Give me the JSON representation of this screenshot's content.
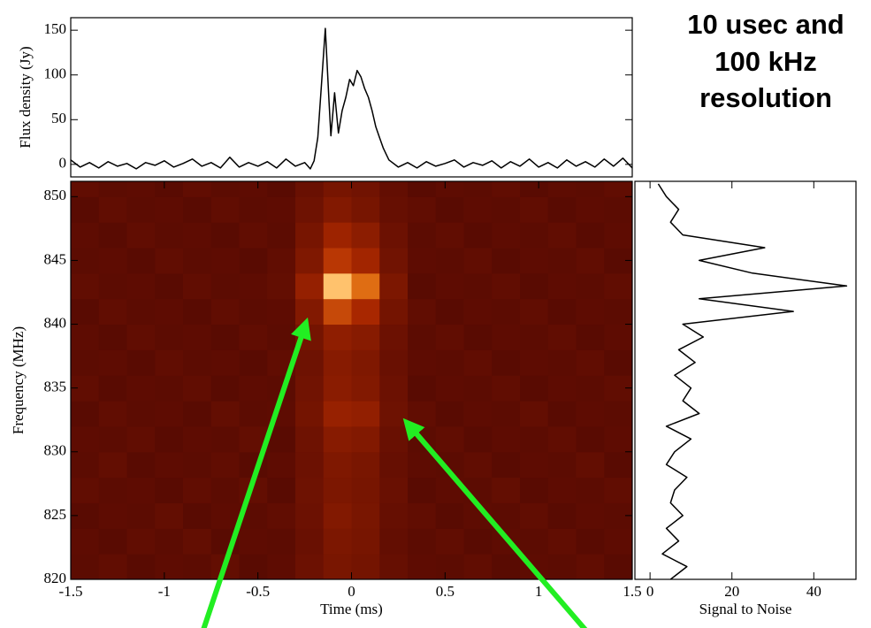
{
  "chart_data": [
    {
      "type": "line",
      "ylabel": "Flux density (Jy)",
      "color": "#000000",
      "xlim": [
        -1.5,
        1.5
      ],
      "ylim": [
        -14,
        164
      ],
      "yticks": [
        0,
        50,
        100,
        150
      ],
      "x": [
        -1.5,
        -1.45,
        -1.4,
        -1.35,
        -1.3,
        -1.25,
        -1.2,
        -1.15,
        -1.1,
        -1.05,
        -1,
        -0.95,
        -0.9,
        -0.85,
        -0.8,
        -0.75,
        -0.7,
        -0.65,
        -0.6,
        -0.55,
        -0.5,
        -0.45,
        -0.4,
        -0.35,
        -0.3,
        -0.25,
        -0.22,
        -0.2,
        -0.18,
        -0.16,
        -0.14,
        -0.12,
        -0.11,
        -0.09,
        -0.07,
        -0.05,
        -0.03,
        -0.01,
        0.01,
        0.03,
        0.05,
        0.07,
        0.09,
        0.11,
        0.13,
        0.15,
        0.17,
        0.2,
        0.25,
        0.3,
        0.35,
        0.4,
        0.45,
        0.5,
        0.55,
        0.6,
        0.65,
        0.7,
        0.75,
        0.8,
        0.85,
        0.9,
        0.95,
        1,
        1.05,
        1.1,
        1.15,
        1.2,
        1.25,
        1.3,
        1.35,
        1.4,
        1.45,
        1.5
      ],
      "values": [
        5,
        -3,
        2,
        -4,
        3,
        -2,
        1,
        -5,
        2,
        -1,
        4,
        -3,
        1,
        6,
        -2,
        2,
        -4,
        8,
        -3,
        2,
        -2,
        3,
        -4,
        6,
        -2,
        2,
        -5,
        4,
        30,
        90,
        152,
        70,
        32,
        80,
        35,
        60,
        75,
        95,
        88,
        105,
        98,
        85,
        75,
        60,
        42,
        30,
        18,
        5,
        -3,
        2,
        -4,
        3,
        -2,
        1,
        5,
        -3,
        2,
        -1,
        4,
        -4,
        3,
        -2,
        6,
        -3,
        2,
        -4,
        5,
        -2,
        3,
        -3,
        6,
        -2,
        7,
        -4
      ]
    },
    {
      "type": "heatmap",
      "xlabel": "Time (ms)",
      "ylabel": "Frequency (MHz)",
      "colormap": "hot",
      "xlim": [
        -1.5,
        1.5
      ],
      "ylim": [
        820,
        851.2
      ],
      "xticks": [
        -1.5,
        -1,
        -0.5,
        0,
        0.5,
        1,
        1.5
      ],
      "yticks": [
        820,
        825,
        830,
        835,
        840,
        845,
        850
      ],
      "x_bins": [
        -1.5,
        -1.35,
        -1.2,
        -1.05,
        -0.9,
        -0.75,
        -0.6,
        -0.45,
        -0.3,
        -0.15,
        0,
        0.15,
        0.3,
        0.45,
        0.6,
        0.75,
        0.9,
        1.05,
        1.2,
        1.35,
        1.5
      ],
      "y_bins": [
        820,
        822,
        824,
        826,
        828,
        830,
        832,
        834,
        836,
        838,
        840,
        842,
        844,
        846,
        848,
        850,
        851.2
      ],
      "values": [
        [
          0.24,
          0.26,
          0.23,
          0.25,
          0.24,
          0.27,
          0.23,
          0.25,
          0.3,
          0.35,
          0.33,
          0.28,
          0.25,
          0.24,
          0.26,
          0.23,
          0.25,
          0.24,
          0.26,
          0.23
        ],
        [
          0.25,
          0.23,
          0.26,
          0.24,
          0.27,
          0.23,
          0.25,
          0.24,
          0.29,
          0.36,
          0.34,
          0.27,
          0.24,
          0.26,
          0.23,
          0.25,
          0.24,
          0.26,
          0.23,
          0.25
        ],
        [
          0.23,
          0.25,
          0.24,
          0.27,
          0.23,
          0.25,
          0.24,
          0.26,
          0.3,
          0.38,
          0.35,
          0.28,
          0.26,
          0.23,
          0.25,
          0.24,
          0.26,
          0.23,
          0.25,
          0.24
        ],
        [
          0.26,
          0.24,
          0.25,
          0.23,
          0.26,
          0.24,
          0.27,
          0.23,
          0.31,
          0.36,
          0.34,
          0.29,
          0.23,
          0.25,
          0.24,
          0.27,
          0.23,
          0.25,
          0.24,
          0.26
        ],
        [
          0.24,
          0.27,
          0.23,
          0.25,
          0.24,
          0.26,
          0.23,
          0.25,
          0.3,
          0.37,
          0.35,
          0.28,
          0.25,
          0.24,
          0.26,
          0.23,
          0.25,
          0.24,
          0.27,
          0.23
        ],
        [
          0.25,
          0.24,
          0.26,
          0.23,
          0.25,
          0.24,
          0.27,
          0.23,
          0.31,
          0.4,
          0.38,
          0.29,
          0.24,
          0.26,
          0.23,
          0.25,
          0.24,
          0.26,
          0.23,
          0.25
        ],
        [
          0.23,
          0.26,
          0.24,
          0.25,
          0.23,
          0.27,
          0.24,
          0.25,
          0.33,
          0.46,
          0.44,
          0.31,
          0.26,
          0.23,
          0.25,
          0.24,
          0.27,
          0.23,
          0.25,
          0.24
        ],
        [
          0.26,
          0.23,
          0.25,
          0.24,
          0.26,
          0.23,
          0.25,
          0.24,
          0.32,
          0.41,
          0.38,
          0.3,
          0.23,
          0.25,
          0.24,
          0.26,
          0.23,
          0.25,
          0.24,
          0.26
        ],
        [
          0.24,
          0.25,
          0.23,
          0.26,
          0.24,
          0.25,
          0.23,
          0.26,
          0.31,
          0.4,
          0.37,
          0.29,
          0.25,
          0.24,
          0.26,
          0.23,
          0.25,
          0.24,
          0.26,
          0.23
        ],
        [
          0.25,
          0.23,
          0.26,
          0.24,
          0.25,
          0.23,
          0.26,
          0.24,
          0.33,
          0.43,
          0.4,
          0.3,
          0.24,
          0.26,
          0.23,
          0.25,
          0.24,
          0.26,
          0.23,
          0.25
        ],
        [
          0.23,
          0.26,
          0.24,
          0.25,
          0.23,
          0.26,
          0.24,
          0.25,
          0.38,
          0.62,
          0.52,
          0.33,
          0.26,
          0.23,
          0.25,
          0.24,
          0.26,
          0.23,
          0.25,
          0.24
        ],
        [
          0.26,
          0.24,
          0.25,
          0.23,
          0.26,
          0.24,
          0.25,
          0.27,
          0.45,
          0.88,
          0.7,
          0.36,
          0.23,
          0.25,
          0.24,
          0.26,
          0.23,
          0.25,
          0.24,
          0.26
        ],
        [
          0.24,
          0.25,
          0.23,
          0.26,
          0.24,
          0.25,
          0.23,
          0.26,
          0.37,
          0.58,
          0.5,
          0.32,
          0.25,
          0.24,
          0.26,
          0.23,
          0.25,
          0.24,
          0.26,
          0.23
        ],
        [
          0.25,
          0.23,
          0.26,
          0.24,
          0.25,
          0.23,
          0.26,
          0.24,
          0.34,
          0.48,
          0.42,
          0.3,
          0.24,
          0.26,
          0.23,
          0.25,
          0.24,
          0.26,
          0.23,
          0.25
        ],
        [
          0.23,
          0.26,
          0.24,
          0.25,
          0.23,
          0.26,
          0.24,
          0.25,
          0.31,
          0.38,
          0.34,
          0.28,
          0.26,
          0.23,
          0.25,
          0.24,
          0.26,
          0.23,
          0.25,
          0.24
        ],
        [
          0.26,
          0.24,
          0.25,
          0.23,
          0.26,
          0.24,
          0.25,
          0.23,
          0.29,
          0.34,
          0.32,
          0.27,
          0.23,
          0.25,
          0.24,
          0.26,
          0.23,
          0.25,
          0.24,
          0.26
        ]
      ]
    },
    {
      "type": "line",
      "orientation": "vertical",
      "xlabel": "Signal to Noise",
      "color": "#000000",
      "xlim": [
        -3.7,
        50.3
      ],
      "xticks": [
        0,
        20,
        40
      ],
      "ylim": [
        820,
        851.2
      ],
      "y": [
        820,
        821,
        822,
        823,
        824,
        825,
        826,
        827,
        828,
        829,
        830,
        831,
        832,
        833,
        834,
        835,
        836,
        837,
        838,
        839,
        840,
        841,
        842,
        843,
        844,
        845,
        846,
        847,
        848,
        849,
        850,
        851
      ],
      "values": [
        5,
        9,
        3,
        7,
        4,
        8,
        5,
        6,
        9,
        4,
        6,
        10,
        4,
        12,
        8,
        10,
        6,
        11,
        7,
        13,
        8,
        35,
        12,
        48,
        25,
        12,
        28,
        8,
        5,
        7,
        4,
        2
      ]
    }
  ],
  "annotation": [
    "10 usec and",
    "100 kHz",
    "resolution"
  ]
}
